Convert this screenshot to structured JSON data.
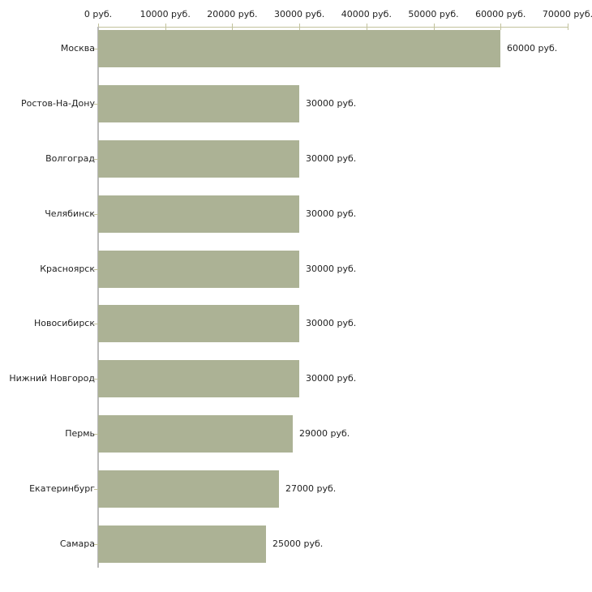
{
  "chart_data": {
    "type": "bar",
    "orientation": "horizontal",
    "title": "",
    "xlabel": "",
    "ylabel": "",
    "unit": "руб.",
    "xlim": [
      0,
      71200
    ],
    "grid": false,
    "legend": "none",
    "categories": [
      "Москва",
      "Ростов-На-Дону",
      "Волгоград",
      "Челябинск",
      "Красноярск",
      "Новосибирск",
      "Нижний Новгород",
      "Пермь",
      "Екатеринбург",
      "Самара"
    ],
    "values": [
      60000,
      30000,
      30000,
      30000,
      30000,
      30000,
      30000,
      29000,
      27000,
      25000
    ],
    "value_labels": [
      "60000 руб.",
      "30000 руб.",
      "30000 руб.",
      "30000 руб.",
      "30000 руб.",
      "30000 руб.",
      "30000 руб.",
      "29000 руб.",
      "27000 руб.",
      "25000 руб."
    ],
    "x_tick_values": [
      0,
      10000,
      20000,
      30000,
      40000,
      50000,
      60000,
      70000
    ],
    "x_tick_labels": [
      "0 руб.",
      "10000 руб.",
      "20000 руб.",
      "30000 руб.",
      "40000 руб.",
      "50000 руб.",
      "60000 руб.",
      "70000 руб."
    ],
    "colors": {
      "bar": "#acb295",
      "axis_line": "#b9b9b9",
      "tick_mark": "#c2c29c",
      "text": "#222222",
      "background": "#ffffff"
    }
  }
}
